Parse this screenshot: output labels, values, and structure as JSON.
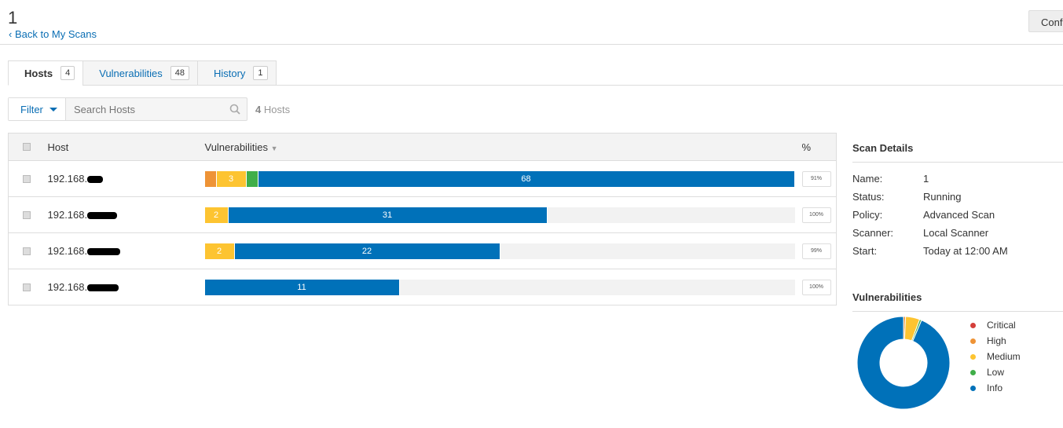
{
  "header": {
    "title": "1",
    "back_label": "Back to My Scans",
    "configure_label": "Conf"
  },
  "tabs": [
    {
      "label": "Hosts",
      "count": "4"
    },
    {
      "label": "Vulnerabilities",
      "count": "48"
    },
    {
      "label": "History",
      "count": "1"
    }
  ],
  "filter": {
    "label": "Filter",
    "search_placeholder": "Search Hosts",
    "count": "4",
    "count_label": "Hosts"
  },
  "table": {
    "columns": [
      "Host",
      "Vulnerabilities",
      "%"
    ],
    "rows": [
      {
        "host": "192.168.",
        "critical": 0,
        "high": 1,
        "medium": 3,
        "low": 1,
        "info": 68,
        "medium_label": "3",
        "info_label": "68",
        "percent": "91%"
      },
      {
        "host": "192.168.",
        "critical": 0,
        "high": 0,
        "medium": 2,
        "low": 0,
        "info": 31,
        "medium_label": "2",
        "info_label": "31",
        "percent": "100%"
      },
      {
        "host": "192.168.",
        "critical": 0,
        "high": 0,
        "medium": 2,
        "low": 0,
        "info": 22,
        "medium_label": "2",
        "info_label": "22",
        "percent": "99%"
      },
      {
        "host": "192.168.",
        "critical": 0,
        "high": 0,
        "medium": 0,
        "low": 0,
        "info": 11,
        "info_label": "11",
        "percent": "100%"
      }
    ]
  },
  "scan_details": {
    "heading": "Scan Details",
    "fields": [
      {
        "label": "Name:",
        "value": "1"
      },
      {
        "label": "Status:",
        "value": "Running"
      },
      {
        "label": "Policy:",
        "value": "Advanced Scan"
      },
      {
        "label": "Scanner:",
        "value": "Local Scanner"
      },
      {
        "label": "Start:",
        "value": "Today at 12:00 AM"
      }
    ]
  },
  "vulnerabilities": {
    "heading": "Vulnerabilities",
    "legend": [
      {
        "label": "Critical",
        "color": "#d43f3a",
        "value": 0
      },
      {
        "label": "High",
        "color": "#ee9336",
        "value": 1
      },
      {
        "label": "Medium",
        "color": "#fdc431",
        "value": 7
      },
      {
        "label": "Low",
        "color": "#3fae49",
        "value": 1
      },
      {
        "label": "Info",
        "color": "#0071b9",
        "value": 132
      }
    ]
  },
  "colors": {
    "accent": "#0a6eb4"
  }
}
